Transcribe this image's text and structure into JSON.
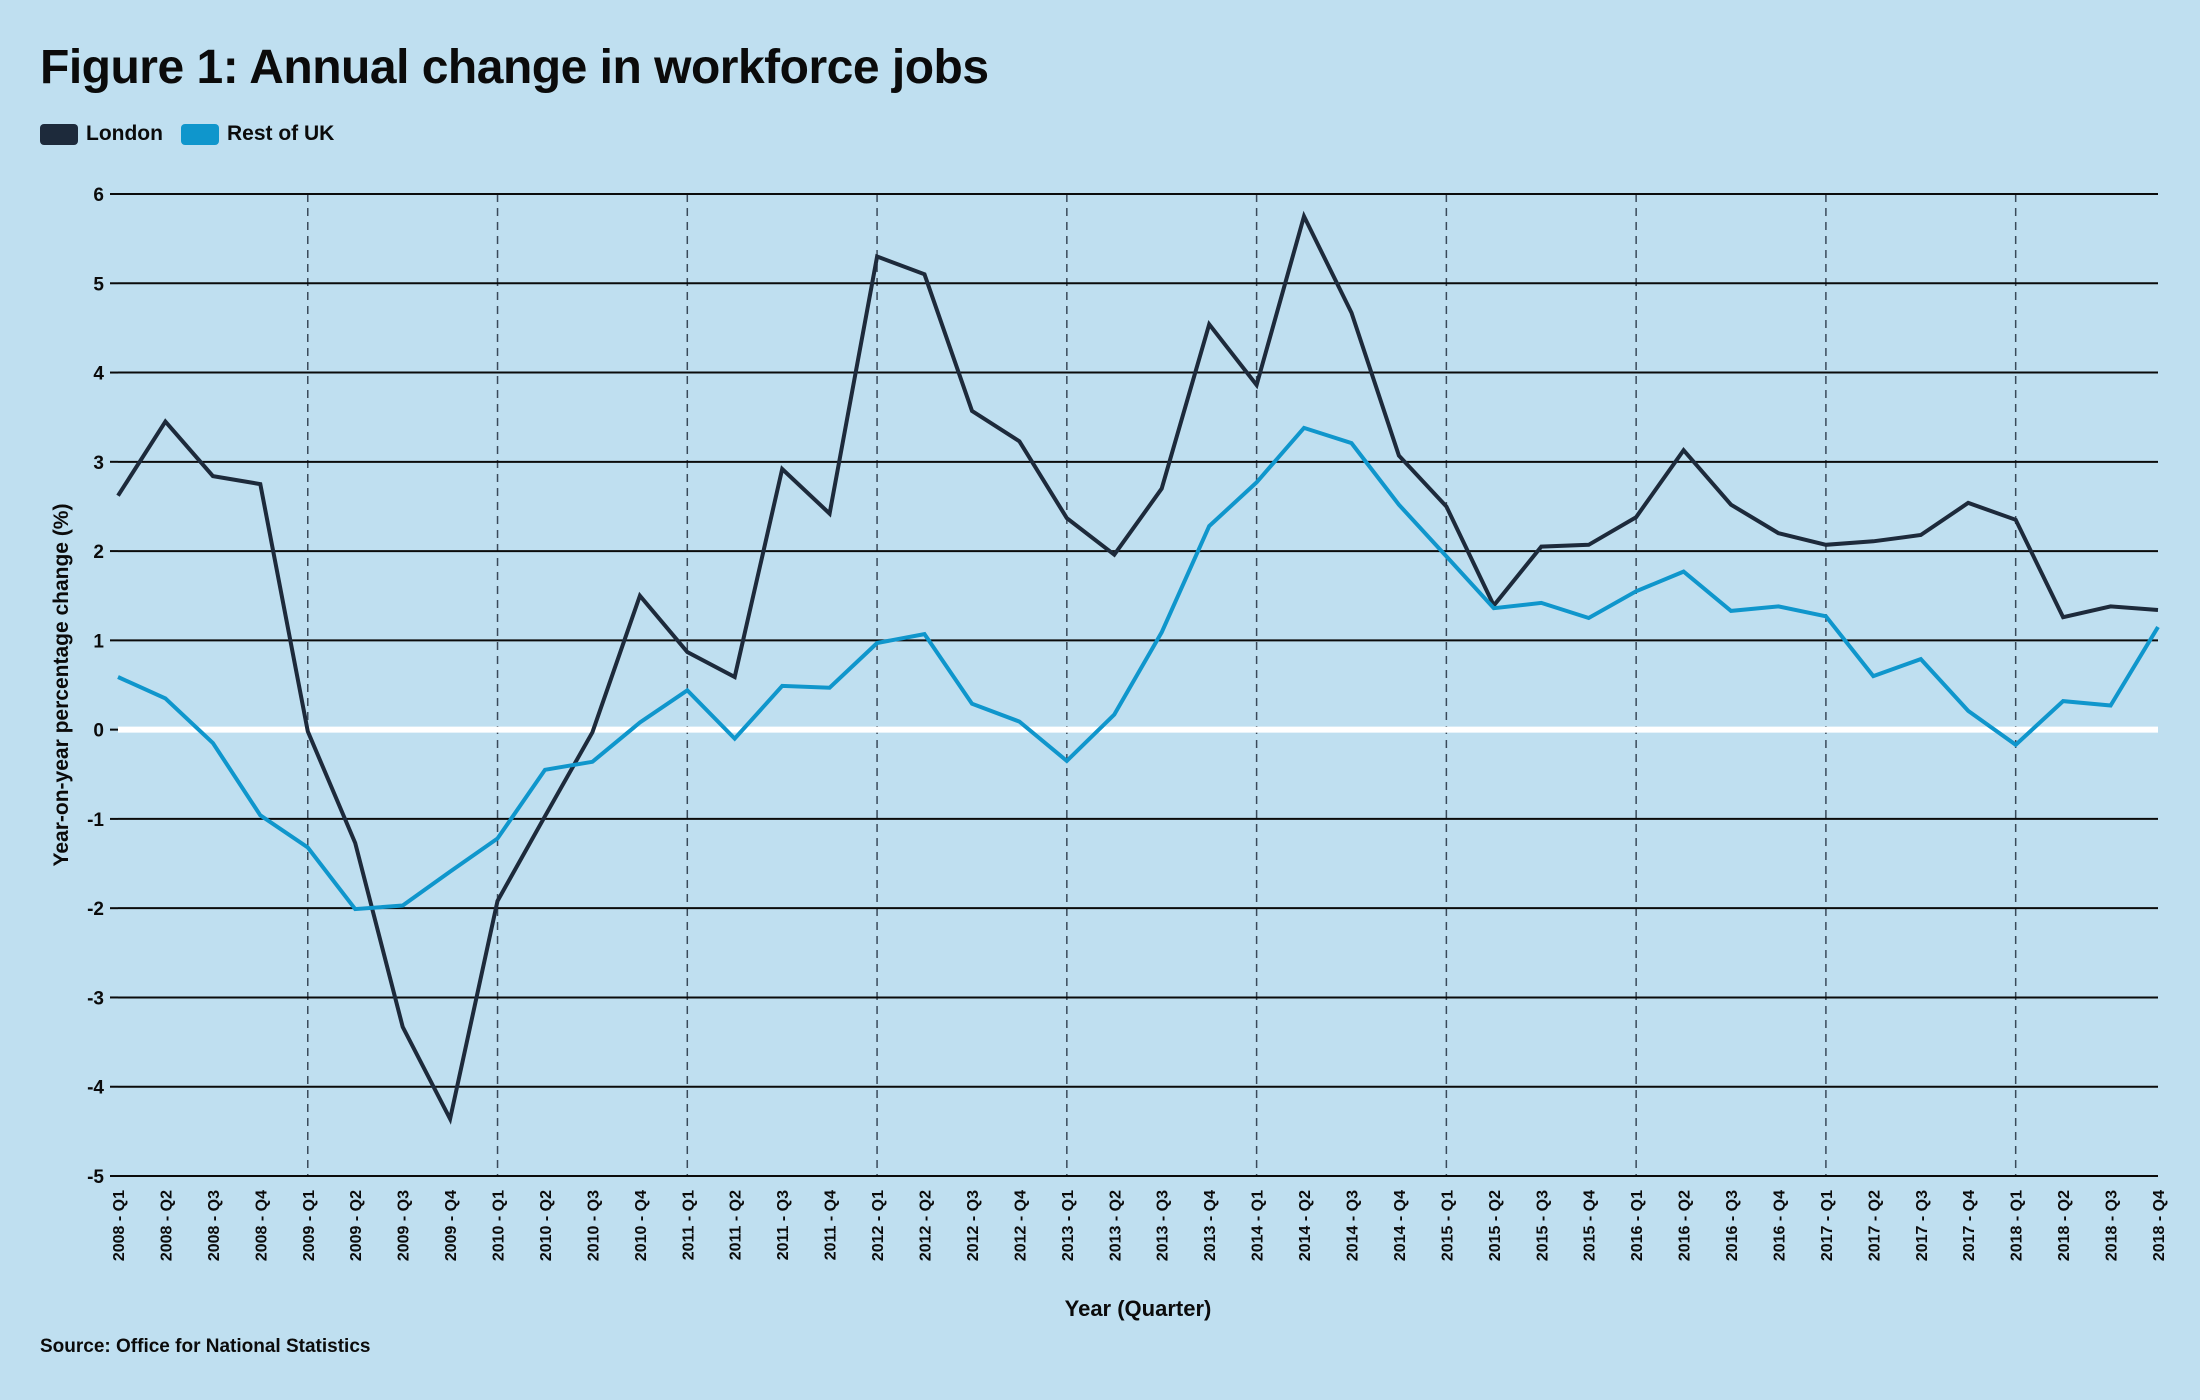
{
  "title": "Figure 1: Annual change in workforce jobs",
  "legend": [
    {
      "label": "London",
      "color": "#1d2a3b"
    },
    {
      "label": "Rest of UK",
      "color": "#0f96cc"
    }
  ],
  "source": "Source: Office for National Statistics",
  "chart_data": {
    "type": "line",
    "title": "Figure 1: Annual change in workforce jobs",
    "xlabel": "Year (Quarter)",
    "ylabel": "Year-on-year percentage change (%)",
    "ylim": [
      -5,
      6
    ],
    "yticks": [
      6,
      5,
      4,
      3,
      2,
      1,
      0,
      -1,
      -2,
      -3,
      -4,
      -5
    ],
    "grid": true,
    "legend_position": "top-left",
    "categories": [
      "2008 - Q1",
      "2008 - Q2",
      "2008 - Q3",
      "2008 - Q4",
      "2009 - Q1",
      "2009 - Q2",
      "2009 - Q3",
      "2009 - Q4",
      "2010 - Q1",
      "2010 - Q2",
      "2010 - Q3",
      "2010 - Q4",
      "2011 - Q1",
      "2011 - Q2",
      "2011 - Q3",
      "2011 - Q4",
      "2012 - Q1",
      "2012 - Q2",
      "2012 - Q3",
      "2012 - Q4",
      "2013 - Q1",
      "2013 - Q2",
      "2013 - Q3",
      "2013 - Q4",
      "2014 - Q1",
      "2014 - Q2",
      "2014 - Q3",
      "2014 - Q4",
      "2015 - Q1",
      "2015 - Q2",
      "2015 - Q3",
      "2015 - Q4",
      "2016 - Q1",
      "2016 - Q2",
      "2016 - Q3",
      "2016 - Q4",
      "2017 - Q1",
      "2017 - Q2",
      "2017 - Q3",
      "2017 - Q4",
      "2018 - Q1",
      "2018 - Q2",
      "2018 - Q3",
      "2018 - Q4"
    ],
    "series": [
      {
        "name": "London",
        "color": "#1d2a3b",
        "values": [
          2.62,
          3.45,
          2.84,
          2.75,
          -0.02,
          -1.27,
          -3.33,
          -4.36,
          -1.92,
          -0.97,
          -0.03,
          1.5,
          0.87,
          0.59,
          2.92,
          2.42,
          5.3,
          5.1,
          3.57,
          3.23,
          2.37,
          1.96,
          2.7,
          4.54,
          3.86,
          5.75,
          4.67,
          3.07,
          2.5,
          1.39,
          2.05,
          2.07,
          2.38,
          3.13,
          2.52,
          2.2,
          2.07,
          2.11,
          2.18,
          2.54,
          2.35,
          1.26,
          1.38,
          1.34
        ]
      },
      {
        "name": "Rest of UK",
        "color": "#0f96cc",
        "values": [
          0.59,
          0.35,
          -0.15,
          -0.96,
          -1.32,
          -2.01,
          -1.97,
          -1.59,
          -1.22,
          -0.45,
          -0.36,
          0.08,
          0.44,
          -0.1,
          0.49,
          0.47,
          0.97,
          1.07,
          0.29,
          0.09,
          -0.35,
          0.17,
          1.09,
          2.28,
          2.77,
          3.38,
          3.21,
          2.52,
          1.94,
          1.36,
          1.42,
          1.25,
          1.55,
          1.77,
          1.33,
          1.38,
          1.27,
          0.6,
          0.79,
          0.21,
          -0.17,
          0.32,
          0.27,
          1.15
        ]
      }
    ]
  }
}
